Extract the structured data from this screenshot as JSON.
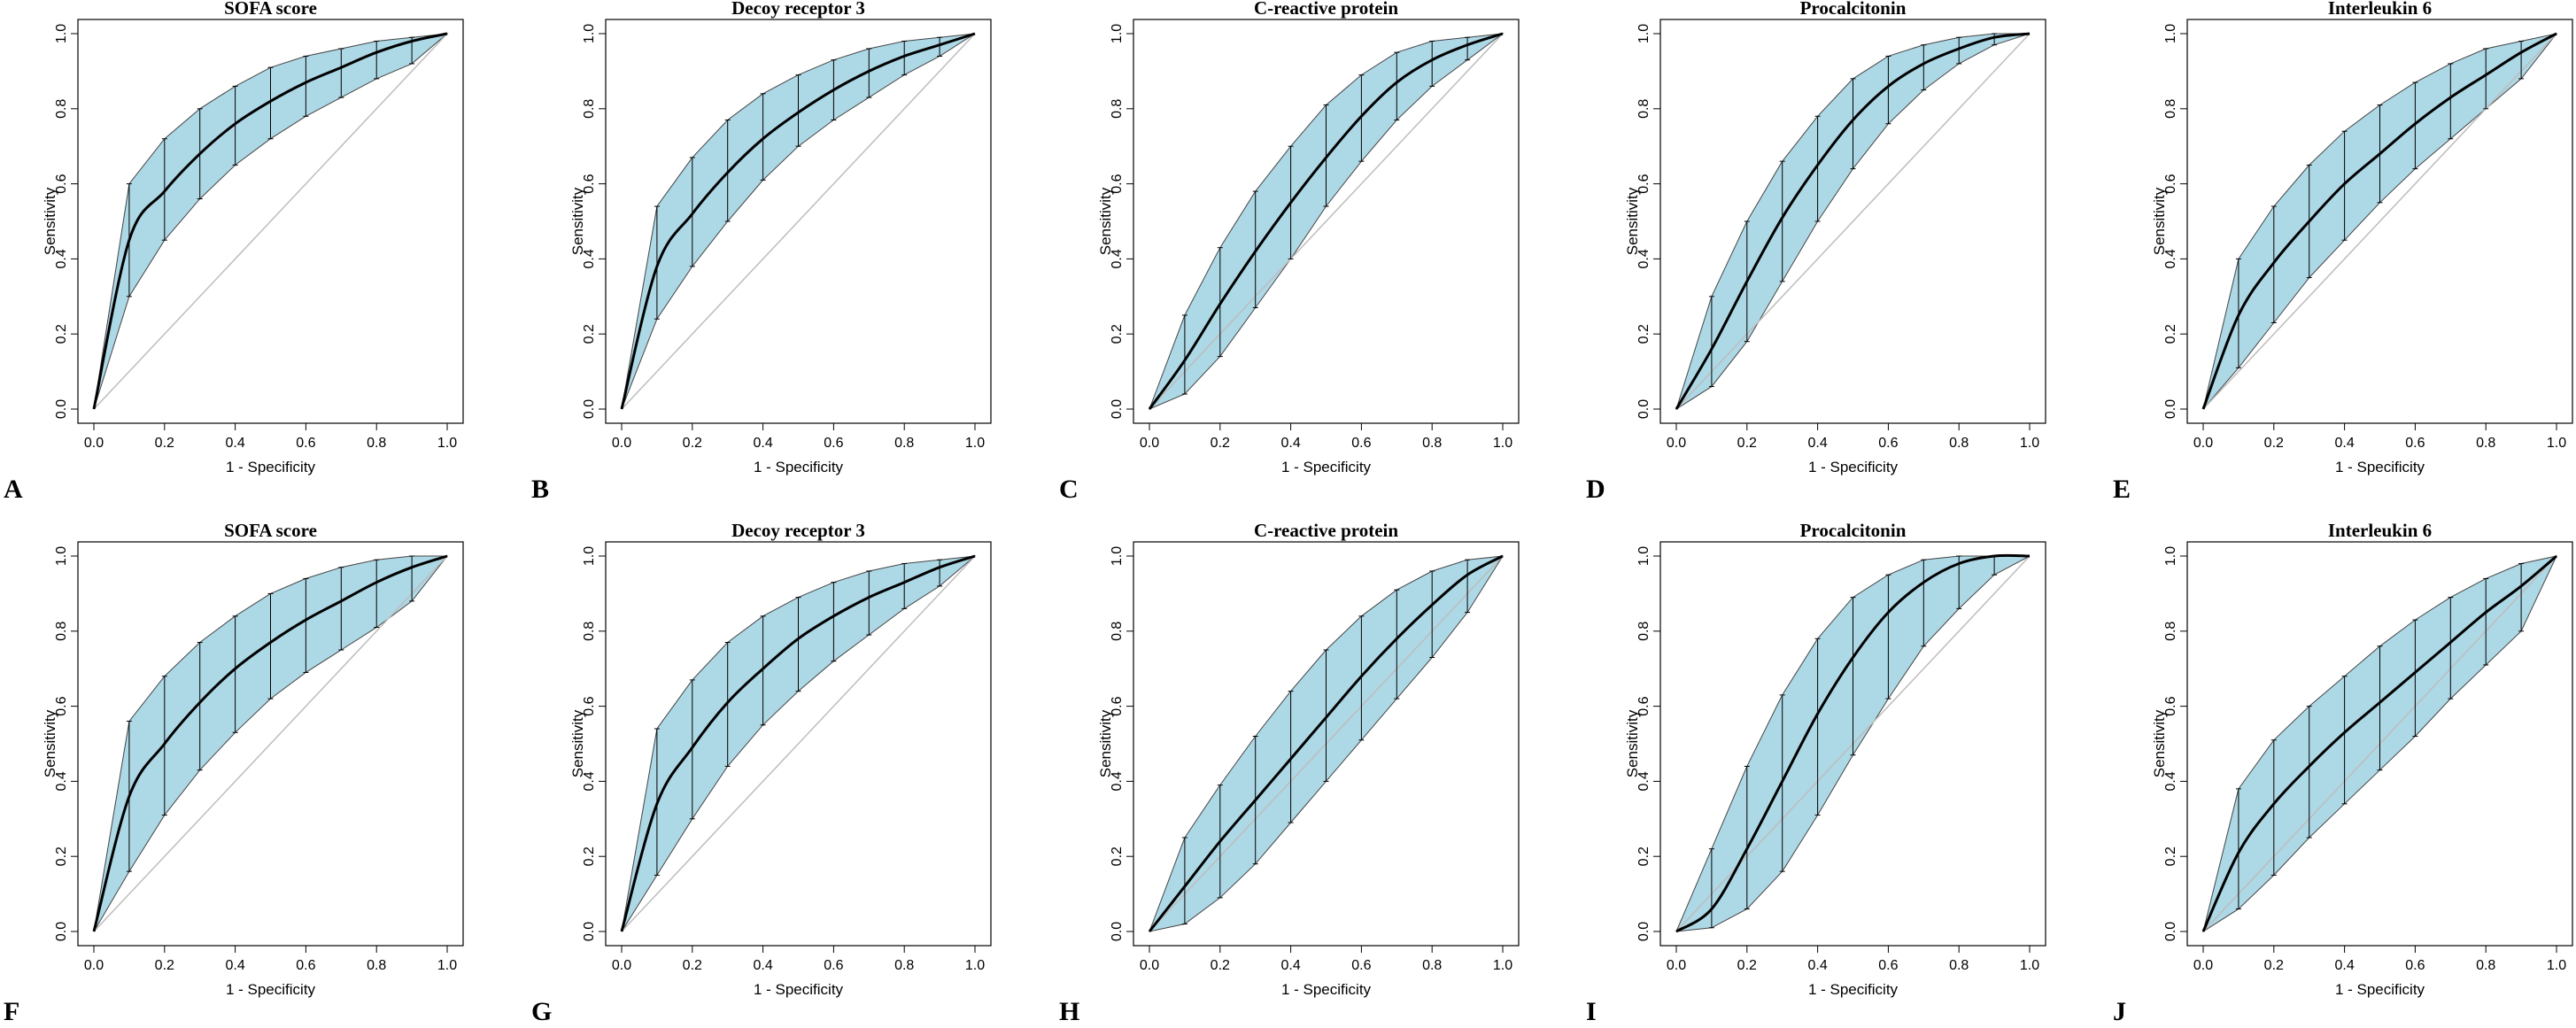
{
  "chart_data": [
    {
      "panel": "A",
      "title": "SOFA score",
      "xlabel": "1 - Specificity",
      "ylabel": "Sensitivity",
      "type": "line",
      "xlim": [
        0,
        1
      ],
      "ylim": [
        0,
        1
      ],
      "ticks": [
        "0.0",
        "0.2",
        "0.4",
        "0.6",
        "0.8",
        "1.0"
      ],
      "x": [
        0,
        0.1,
        0.2,
        0.3,
        0.4,
        0.5,
        0.6,
        0.7,
        0.8,
        0.9,
        1.0
      ],
      "series": [
        {
          "name": "ROC",
          "values": [
            0,
            0.45,
            0.58,
            0.68,
            0.76,
            0.82,
            0.87,
            0.91,
            0.95,
            0.98,
            1.0
          ]
        },
        {
          "name": "CI upper",
          "values": [
            0,
            0.6,
            0.72,
            0.8,
            0.86,
            0.91,
            0.94,
            0.96,
            0.98,
            0.99,
            1.0
          ]
        },
        {
          "name": "CI lower",
          "values": [
            0,
            0.3,
            0.45,
            0.56,
            0.65,
            0.72,
            0.78,
            0.83,
            0.88,
            0.92,
            1.0
          ]
        }
      ]
    },
    {
      "panel": "B",
      "title": "Decoy receptor 3",
      "xlabel": "1 - Specificity",
      "ylabel": "Sensitivity",
      "type": "line",
      "xlim": [
        0,
        1
      ],
      "ylim": [
        0,
        1
      ],
      "ticks": [
        "0.0",
        "0.2",
        "0.4",
        "0.6",
        "0.8",
        "1.0"
      ],
      "x": [
        0,
        0.1,
        0.2,
        0.3,
        0.4,
        0.5,
        0.6,
        0.7,
        0.8,
        0.9,
        1.0
      ],
      "series": [
        {
          "name": "ROC",
          "values": [
            0,
            0.38,
            0.52,
            0.63,
            0.72,
            0.79,
            0.85,
            0.9,
            0.94,
            0.97,
            1.0
          ]
        },
        {
          "name": "CI upper",
          "values": [
            0,
            0.54,
            0.67,
            0.77,
            0.84,
            0.89,
            0.93,
            0.96,
            0.98,
            0.99,
            1.0
          ]
        },
        {
          "name": "CI lower",
          "values": [
            0,
            0.24,
            0.38,
            0.5,
            0.61,
            0.7,
            0.77,
            0.83,
            0.89,
            0.94,
            1.0
          ]
        }
      ]
    },
    {
      "panel": "C",
      "title": "C-reactive protein",
      "xlabel": "1 - Specificity",
      "ylabel": "Sensitivity",
      "type": "line",
      "xlim": [
        0,
        1
      ],
      "ylim": [
        0,
        1
      ],
      "ticks": [
        "0.0",
        "0.2",
        "0.4",
        "0.6",
        "0.8",
        "1.0"
      ],
      "x": [
        0,
        0.1,
        0.2,
        0.3,
        0.4,
        0.5,
        0.6,
        0.7,
        0.8,
        0.9,
        1.0
      ],
      "series": [
        {
          "name": "ROC",
          "values": [
            0,
            0.13,
            0.28,
            0.42,
            0.55,
            0.67,
            0.78,
            0.87,
            0.93,
            0.97,
            1.0
          ]
        },
        {
          "name": "CI upper",
          "values": [
            0,
            0.25,
            0.43,
            0.58,
            0.7,
            0.81,
            0.89,
            0.95,
            0.98,
            0.99,
            1.0
          ]
        },
        {
          "name": "CI lower",
          "values": [
            0,
            0.04,
            0.14,
            0.27,
            0.4,
            0.54,
            0.66,
            0.77,
            0.86,
            0.93,
            1.0
          ]
        }
      ]
    },
    {
      "panel": "D",
      "title": "Procalcitonin",
      "xlabel": "1 - Specificity",
      "ylabel": "Sensitivity",
      "type": "line",
      "xlim": [
        0,
        1
      ],
      "ylim": [
        0,
        1
      ],
      "ticks": [
        "0.0",
        "0.2",
        "0.4",
        "0.6",
        "0.8",
        "1.0"
      ],
      "x": [
        0,
        0.1,
        0.2,
        0.3,
        0.4,
        0.5,
        0.6,
        0.7,
        0.8,
        0.9,
        1.0
      ],
      "series": [
        {
          "name": "ROC",
          "values": [
            0,
            0.16,
            0.34,
            0.51,
            0.65,
            0.77,
            0.86,
            0.92,
            0.96,
            0.99,
            1.0
          ]
        },
        {
          "name": "CI upper",
          "values": [
            0,
            0.3,
            0.5,
            0.66,
            0.78,
            0.88,
            0.94,
            0.97,
            0.99,
            1.0,
            1.0
          ]
        },
        {
          "name": "CI lower",
          "values": [
            0,
            0.06,
            0.18,
            0.34,
            0.5,
            0.64,
            0.76,
            0.85,
            0.92,
            0.97,
            1.0
          ]
        }
      ]
    },
    {
      "panel": "E",
      "title": "Interleukin 6",
      "xlabel": "1 - Specificity",
      "ylabel": "Sensitivity",
      "type": "line",
      "xlim": [
        0,
        1
      ],
      "ylim": [
        0,
        1
      ],
      "ticks": [
        "0.0",
        "0.2",
        "0.4",
        "0.6",
        "0.8",
        "1.0"
      ],
      "x": [
        0,
        0.1,
        0.2,
        0.3,
        0.4,
        0.5,
        0.6,
        0.7,
        0.8,
        0.9,
        1.0
      ],
      "series": [
        {
          "name": "ROC",
          "values": [
            0,
            0.25,
            0.39,
            0.5,
            0.6,
            0.68,
            0.76,
            0.83,
            0.89,
            0.95,
            1.0
          ]
        },
        {
          "name": "CI upper",
          "values": [
            0,
            0.4,
            0.54,
            0.65,
            0.74,
            0.81,
            0.87,
            0.92,
            0.96,
            0.98,
            1.0
          ]
        },
        {
          "name": "CI lower",
          "values": [
            0,
            0.11,
            0.23,
            0.35,
            0.45,
            0.55,
            0.64,
            0.72,
            0.8,
            0.88,
            1.0
          ]
        }
      ]
    },
    {
      "panel": "F",
      "title": "SOFA score",
      "xlabel": "1 - Specificity",
      "ylabel": "Sensitivity",
      "type": "line",
      "xlim": [
        0,
        1
      ],
      "ylim": [
        0,
        1
      ],
      "ticks": [
        "0.0",
        "0.2",
        "0.4",
        "0.6",
        "0.8",
        "1.0"
      ],
      "x": [
        0,
        0.1,
        0.2,
        0.3,
        0.4,
        0.5,
        0.6,
        0.7,
        0.8,
        0.9,
        1.0
      ],
      "series": [
        {
          "name": "ROC",
          "values": [
            0,
            0.36,
            0.5,
            0.61,
            0.7,
            0.77,
            0.83,
            0.88,
            0.93,
            0.97,
            1.0
          ]
        },
        {
          "name": "CI upper",
          "values": [
            0,
            0.56,
            0.68,
            0.77,
            0.84,
            0.9,
            0.94,
            0.97,
            0.99,
            1.0,
            1.0
          ]
        },
        {
          "name": "CI lower",
          "values": [
            0,
            0.16,
            0.31,
            0.43,
            0.53,
            0.62,
            0.69,
            0.75,
            0.81,
            0.88,
            1.0
          ]
        }
      ]
    },
    {
      "panel": "G",
      "title": "Decoy receptor 3",
      "xlabel": "1 - Specificity",
      "ylabel": "Sensitivity",
      "type": "line",
      "xlim": [
        0,
        1
      ],
      "ylim": [
        0,
        1
      ],
      "ticks": [
        "0.0",
        "0.2",
        "0.4",
        "0.6",
        "0.8",
        "1.0"
      ],
      "x": [
        0,
        0.1,
        0.2,
        0.3,
        0.4,
        0.5,
        0.6,
        0.7,
        0.8,
        0.9,
        1.0
      ],
      "series": [
        {
          "name": "ROC",
          "values": [
            0,
            0.34,
            0.49,
            0.61,
            0.7,
            0.78,
            0.84,
            0.89,
            0.93,
            0.97,
            1.0
          ]
        },
        {
          "name": "CI upper",
          "values": [
            0,
            0.54,
            0.67,
            0.77,
            0.84,
            0.89,
            0.93,
            0.96,
            0.98,
            0.99,
            1.0
          ]
        },
        {
          "name": "CI lower",
          "values": [
            0,
            0.15,
            0.3,
            0.44,
            0.55,
            0.64,
            0.72,
            0.79,
            0.86,
            0.92,
            1.0
          ]
        }
      ]
    },
    {
      "panel": "H",
      "title": "C-reactive protein",
      "xlabel": "1 - Specificity",
      "ylabel": "Sensitivity",
      "type": "line",
      "xlim": [
        0,
        1
      ],
      "ylim": [
        0,
        1
      ],
      "ticks": [
        "0.0",
        "0.2",
        "0.4",
        "0.6",
        "0.8",
        "1.0"
      ],
      "x": [
        0,
        0.1,
        0.2,
        0.3,
        0.4,
        0.5,
        0.6,
        0.7,
        0.8,
        0.9,
        1.0
      ],
      "series": [
        {
          "name": "ROC",
          "values": [
            0,
            0.12,
            0.24,
            0.35,
            0.46,
            0.57,
            0.68,
            0.78,
            0.87,
            0.95,
            1.0
          ]
        },
        {
          "name": "CI upper",
          "values": [
            0,
            0.25,
            0.39,
            0.52,
            0.64,
            0.75,
            0.84,
            0.91,
            0.96,
            0.99,
            1.0
          ]
        },
        {
          "name": "CI lower",
          "values": [
            0,
            0.02,
            0.09,
            0.18,
            0.29,
            0.4,
            0.51,
            0.62,
            0.73,
            0.85,
            1.0
          ]
        }
      ]
    },
    {
      "panel": "I",
      "title": "Procalcitonin",
      "xlabel": "1 - Specificity",
      "ylabel": "Sensitivity",
      "type": "line",
      "xlim": [
        0,
        1
      ],
      "ylim": [
        0,
        1
      ],
      "ticks": [
        "0.0",
        "0.2",
        "0.4",
        "0.6",
        "0.8",
        "1.0"
      ],
      "x": [
        0,
        0.1,
        0.2,
        0.3,
        0.4,
        0.5,
        0.6,
        0.7,
        0.8,
        0.9,
        1.0
      ],
      "series": [
        {
          "name": "ROC",
          "values": [
            0,
            0.06,
            0.22,
            0.4,
            0.58,
            0.73,
            0.85,
            0.93,
            0.98,
            1.0,
            1.0
          ]
        },
        {
          "name": "CI upper",
          "values": [
            0,
            0.22,
            0.44,
            0.63,
            0.78,
            0.89,
            0.95,
            0.99,
            1.0,
            1.0,
            1.0
          ]
        },
        {
          "name": "CI lower",
          "values": [
            0,
            0.01,
            0.06,
            0.16,
            0.31,
            0.47,
            0.62,
            0.76,
            0.86,
            0.95,
            1.0
          ]
        }
      ]
    },
    {
      "panel": "J",
      "title": "Interleukin 6",
      "xlabel": "1 - Specificity",
      "ylabel": "Sensitivity",
      "type": "line",
      "xlim": [
        0,
        1
      ],
      "ylim": [
        0,
        1
      ],
      "ticks": [
        "0.0",
        "0.2",
        "0.4",
        "0.6",
        "0.8",
        "1.0"
      ],
      "x": [
        0,
        0.1,
        0.2,
        0.3,
        0.4,
        0.5,
        0.6,
        0.7,
        0.8,
        0.9,
        1.0
      ],
      "series": [
        {
          "name": "ROC",
          "values": [
            0,
            0.21,
            0.34,
            0.44,
            0.53,
            0.61,
            0.69,
            0.77,
            0.85,
            0.92,
            1.0
          ]
        },
        {
          "name": "CI upper",
          "values": [
            0,
            0.38,
            0.51,
            0.6,
            0.68,
            0.76,
            0.83,
            0.89,
            0.94,
            0.98,
            1.0
          ]
        },
        {
          "name": "CI lower",
          "values": [
            0,
            0.06,
            0.15,
            0.25,
            0.34,
            0.43,
            0.52,
            0.62,
            0.71,
            0.8,
            1.0
          ]
        }
      ]
    }
  ],
  "style": {
    "ci_fill": "#add8e6",
    "ci_stroke": "#444444",
    "roc_color": "#000000",
    "diagonal_color": "#bdbdbd",
    "frame_color": "#000000"
  }
}
